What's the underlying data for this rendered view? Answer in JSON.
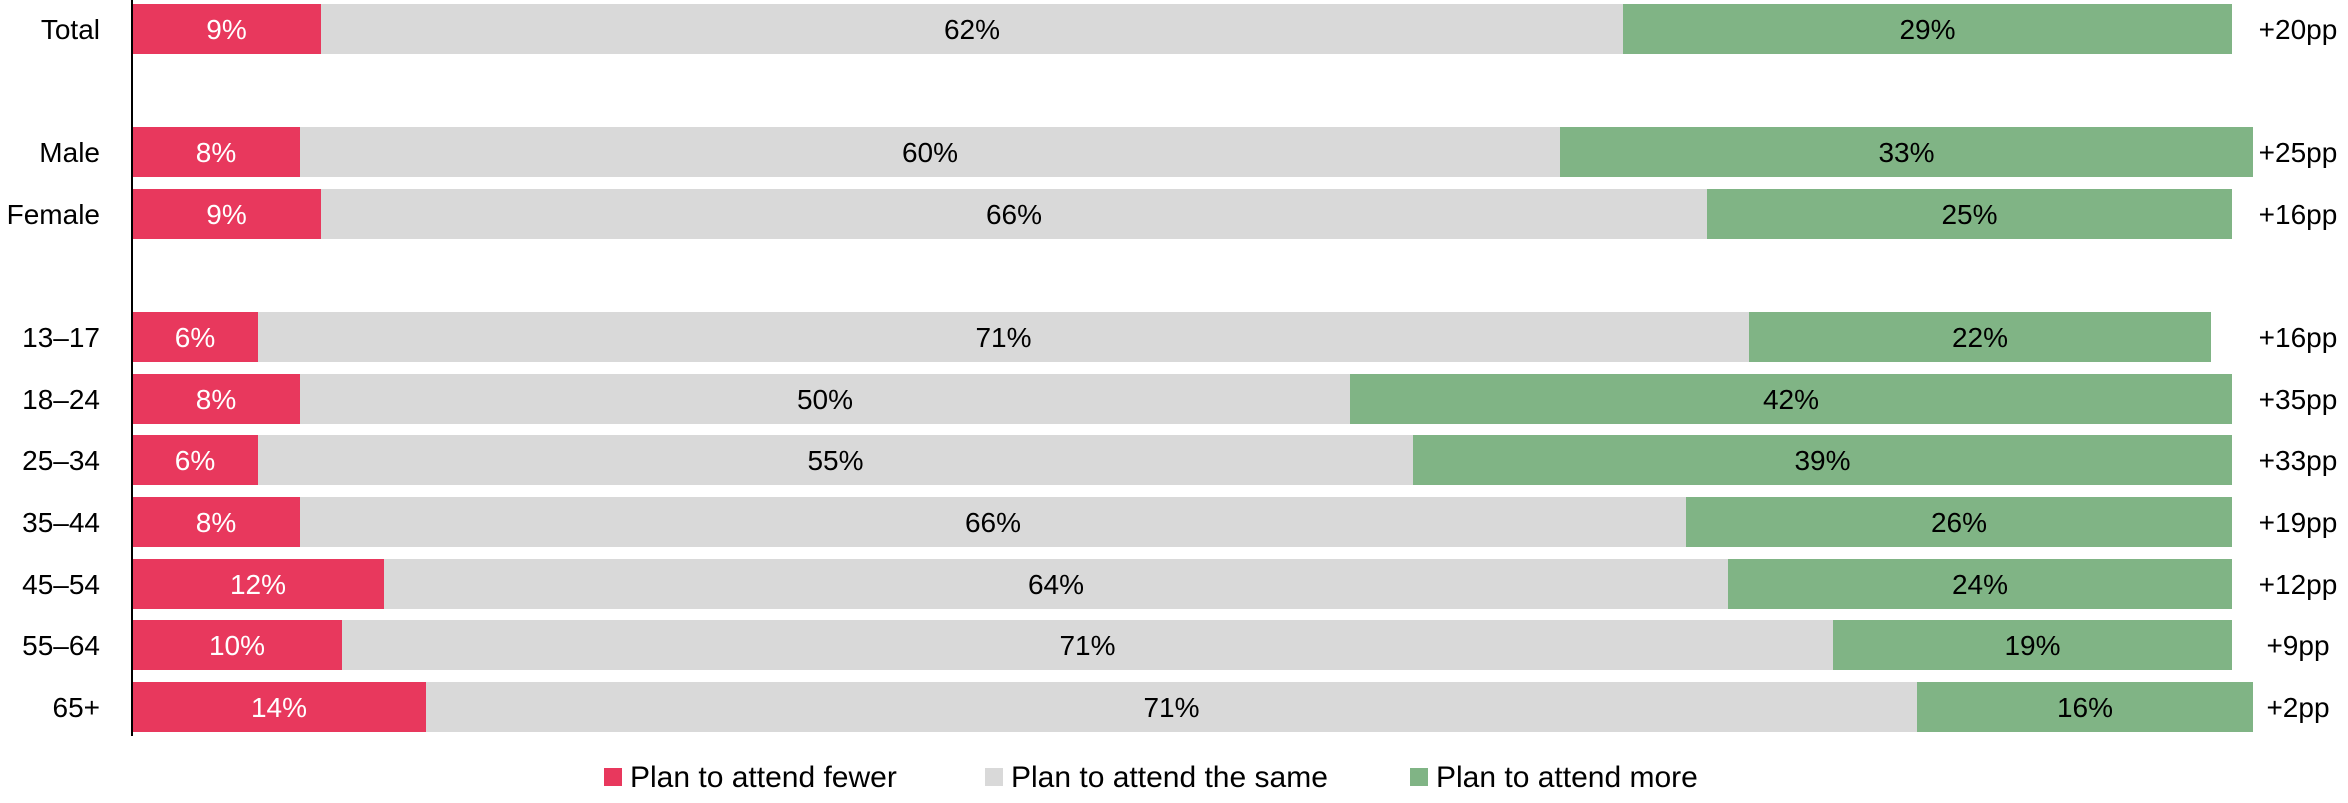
{
  "chart_data": {
    "type": "bar",
    "orientation": "horizontal",
    "stacked": true,
    "normalized": true,
    "categories": [
      "Total",
      "Male",
      "Female",
      "13–17",
      "18–24",
      "25–34",
      "35–44",
      "45–54",
      "55–64",
      "65+"
    ],
    "series": [
      {
        "name": "Plan to attend fewer",
        "color": "#E8385D",
        "values": [
          9,
          8,
          9,
          6,
          8,
          6,
          8,
          12,
          10,
          14
        ],
        "labels": [
          "9%",
          "8%",
          "9%",
          "6%",
          "8%",
          "6%",
          "8%",
          "12%",
          "10%",
          "14%"
        ]
      },
      {
        "name": "Plan to attend the same",
        "color": "#D9D9D9",
        "values": [
          62,
          60,
          66,
          71,
          50,
          55,
          66,
          64,
          71,
          71
        ],
        "labels": [
          "62%",
          "60%",
          "66%",
          "71%",
          "50%",
          "55%",
          "66%",
          "64%",
          "71%",
          "71%"
        ]
      },
      {
        "name": "Plan to attend more",
        "color": "#80B485",
        "values": [
          29,
          33,
          25,
          22,
          42,
          39,
          26,
          24,
          19,
          16
        ],
        "labels": [
          "29%",
          "33%",
          "25%",
          "22%",
          "42%",
          "39%",
          "26%",
          "24%",
          "19%",
          "16%"
        ]
      }
    ],
    "net_labels": [
      "+20pp",
      "+25pp",
      "+16pp",
      "+16pp",
      "+35pp",
      "+33pp",
      "+19pp",
      "+12pp",
      "+9pp",
      "+2pp"
    ],
    "xlim": [
      0,
      100
    ],
    "legend_position": "bottom",
    "grid": false
  }
}
